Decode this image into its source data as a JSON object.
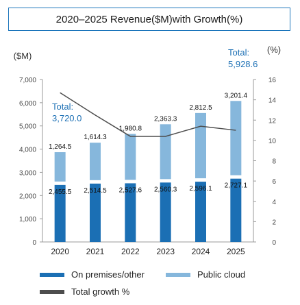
{
  "chart_data": {
    "type": "bar",
    "title": "2020–2025 Revenue($M)with Growth(%)",
    "y_left_label": "($M)",
    "y_right_label": "(%)",
    "categories": [
      "2020",
      "2021",
      "2022",
      "2023",
      "2024",
      "2025"
    ],
    "ylim_left": [
      0,
      7000
    ],
    "yticks_left": [
      "0",
      "1,000",
      "2,000",
      "3,000",
      "4,000",
      "5,000",
      "6,000",
      "7,000"
    ],
    "ylim_right": [
      0,
      16
    ],
    "yticks_right": [
      "0",
      "2",
      "4",
      "6",
      "8",
      "10",
      "12",
      "14",
      "16"
    ],
    "series": [
      {
        "name": "On premises/other",
        "values": [
          2455.5,
          2514.5,
          2527.6,
          2560.3,
          2596.1,
          2727.1
        ],
        "labels": [
          "2,455.5",
          "2,514.5",
          "2,527.6",
          "2,560.3",
          "2,596.1",
          "2,727.1"
        ],
        "color": "#1b6fb4"
      },
      {
        "name": "Public cloud",
        "values": [
          1264.5,
          1614.3,
          1980.8,
          2363.3,
          2812.5,
          3201.4
        ],
        "labels": [
          "1,264.5",
          "1,614.3",
          "1,980.8",
          "2,363.3",
          "2,812.5",
          "3,201.4"
        ],
        "color": "#86b7dc"
      },
      {
        "name": "Total growth %",
        "type": "line",
        "axis": "right",
        "values": [
          14.7,
          12.5,
          10.4,
          10.4,
          11.4,
          11.0
        ],
        "color": "#4d4d4d"
      }
    ],
    "annotations": [
      {
        "label": "Total:",
        "value": "3,720.0",
        "category": "2020"
      },
      {
        "label": "Total:",
        "value": "5,928.6",
        "category": "2025"
      }
    ],
    "legend_position": "bottom"
  }
}
